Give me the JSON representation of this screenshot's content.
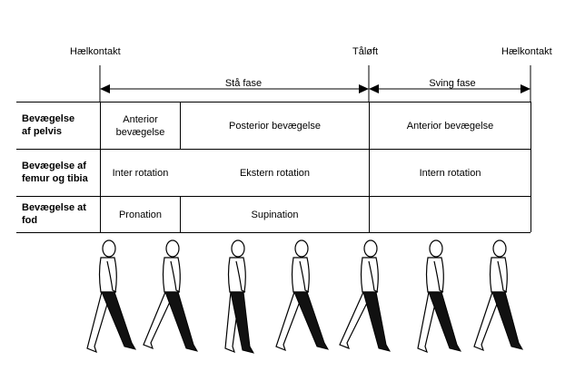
{
  "phase_markers": {
    "heel_strike_start": "Hælkontakt",
    "toe_off": "Tåløft",
    "heel_strike_end": "Hælkontakt"
  },
  "phases": {
    "stance": "Stå fase",
    "swing": "Sving fase"
  },
  "rows": [
    {
      "label_line1": "Bevægelse",
      "label_line2": "af pelvis",
      "cells": [
        "Anterior",
        "bevægelse",
        "Posterior bevægelse",
        "Anterior bevægelse"
      ]
    },
    {
      "label_line1": "Bevægelse af",
      "label_line2": "femur og tibia",
      "cells": [
        "Inter rotation",
        "Ekstern rotation",
        "Intern rotation"
      ]
    },
    {
      "label_line1": "Bevægelse at",
      "label_line2": "fod",
      "cells": [
        "Pronation",
        "Supination",
        ""
      ]
    }
  ],
  "figures_count": 7
}
